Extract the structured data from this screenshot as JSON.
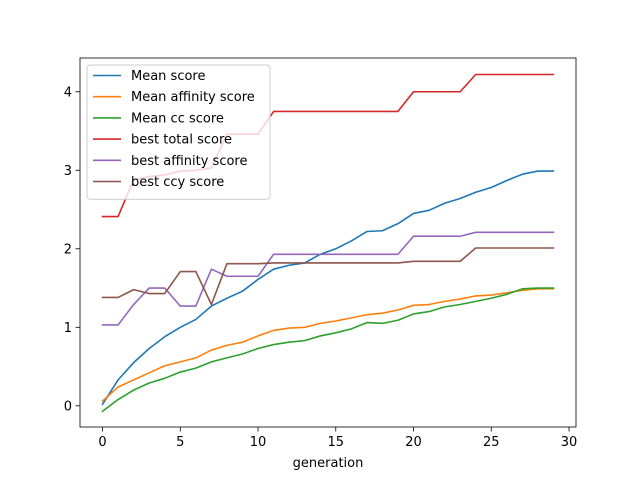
{
  "chart_data": {
    "type": "line",
    "title": "",
    "xlabel": "generation",
    "ylabel": "",
    "xlim": [
      -1.45,
      30.45
    ],
    "ylim": [
      -0.27,
      4.43
    ],
    "xticks": [
      0,
      5,
      10,
      15,
      20,
      25,
      30
    ],
    "yticks": [
      0,
      1,
      2,
      3,
      4
    ],
    "grid": false,
    "legend_position": "upper-left",
    "x": [
      0,
      1,
      2,
      3,
      4,
      5,
      6,
      7,
      8,
      9,
      10,
      11,
      12,
      13,
      14,
      15,
      16,
      17,
      18,
      19,
      20,
      21,
      22,
      23,
      24,
      25,
      26,
      27,
      28,
      29
    ],
    "series": [
      {
        "name": "Mean score",
        "color": "#1f77b4",
        "values": [
          0.02,
          0.33,
          0.55,
          0.73,
          0.88,
          1.0,
          1.1,
          1.27,
          1.37,
          1.46,
          1.61,
          1.74,
          1.79,
          1.82,
          1.93,
          2.0,
          2.1,
          2.22,
          2.23,
          2.32,
          2.45,
          2.49,
          2.58,
          2.64,
          2.72,
          2.78,
          2.87,
          2.95,
          2.99,
          2.99
        ]
      },
      {
        "name": "Mean affinity score",
        "color": "#ff7f0e",
        "values": [
          0.06,
          0.24,
          0.33,
          0.42,
          0.51,
          0.56,
          0.61,
          0.71,
          0.77,
          0.81,
          0.89,
          0.96,
          0.99,
          1.0,
          1.05,
          1.08,
          1.12,
          1.16,
          1.18,
          1.22,
          1.28,
          1.29,
          1.33,
          1.36,
          1.4,
          1.41,
          1.44,
          1.47,
          1.49,
          1.49
        ]
      },
      {
        "name": "Mean cc score",
        "color": "#2ca02c",
        "values": [
          -0.07,
          0.08,
          0.2,
          0.29,
          0.35,
          0.43,
          0.48,
          0.56,
          0.61,
          0.66,
          0.73,
          0.78,
          0.81,
          0.83,
          0.89,
          0.93,
          0.98,
          1.06,
          1.05,
          1.09,
          1.17,
          1.2,
          1.26,
          1.29,
          1.33,
          1.37,
          1.42,
          1.49,
          1.5,
          1.5
        ]
      },
      {
        "name": "best total score",
        "color": "#d62728",
        "values": [
          2.41,
          2.41,
          2.88,
          2.92,
          2.94,
          2.99,
          3.0,
          3.03,
          3.46,
          3.46,
          3.46,
          3.75,
          3.75,
          3.75,
          3.75,
          3.75,
          3.75,
          3.75,
          3.75,
          3.75,
          4.0,
          4.0,
          4.0,
          4.0,
          4.22,
          4.22,
          4.22,
          4.22,
          4.22,
          4.22
        ]
      },
      {
        "name": "best affinity score",
        "color": "#9467bd",
        "values": [
          1.03,
          1.03,
          1.29,
          1.5,
          1.5,
          1.27,
          1.27,
          1.74,
          1.65,
          1.65,
          1.65,
          1.93,
          1.93,
          1.93,
          1.93,
          1.93,
          1.93,
          1.93,
          1.93,
          1.93,
          2.16,
          2.16,
          2.16,
          2.16,
          2.21,
          2.21,
          2.21,
          2.21,
          2.21,
          2.21
        ]
      },
      {
        "name": "best ccy score",
        "color": "#8c564b",
        "values": [
          1.38,
          1.38,
          1.48,
          1.43,
          1.43,
          1.71,
          1.71,
          1.29,
          1.81,
          1.81,
          1.81,
          1.82,
          1.82,
          1.82,
          1.82,
          1.82,
          1.82,
          1.82,
          1.82,
          1.82,
          1.84,
          1.84,
          1.84,
          1.84,
          2.01,
          2.01,
          2.01,
          2.01,
          2.01,
          2.01
        ]
      }
    ]
  }
}
